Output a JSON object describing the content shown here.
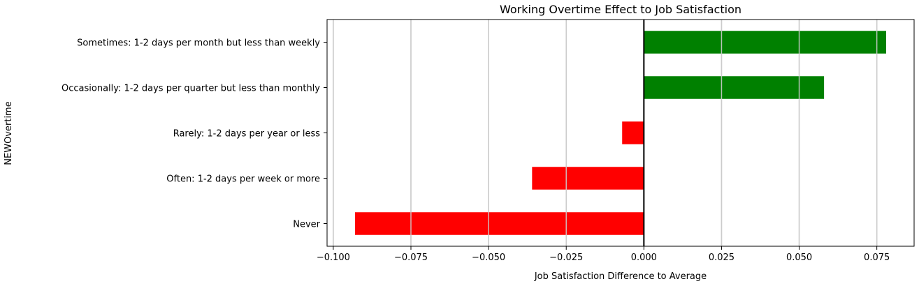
{
  "chart_data": {
    "type": "bar",
    "orientation": "horizontal",
    "title": "Working Overtime Effect to Job Satisfaction",
    "xlabel": "Job Satisfaction Difference to Average",
    "ylabel": "NEWOvertime",
    "categories": [
      "Sometimes: 1-2 days per month but less than weekly",
      "Occasionally: 1-2 days per quarter but less than monthly",
      "Rarely: 1-2 days per year or less",
      "Often: 1-2 days per week or more",
      "Never"
    ],
    "values": [
      0.078,
      0.058,
      -0.007,
      -0.036,
      -0.093
    ],
    "xlim": [
      -0.102,
      0.087
    ],
    "xticks": [
      -0.1,
      -0.075,
      -0.05,
      -0.025,
      0.0,
      0.025,
      0.05,
      0.075
    ],
    "xtick_labels": [
      "−0.100",
      "−0.075",
      "−0.050",
      "−0.025",
      "0.000",
      "0.025",
      "0.050",
      "0.075"
    ],
    "grid": "vertical",
    "colors": {
      "positive": "#008000",
      "negative": "#ff0000",
      "zero_line": "#000000",
      "grid": "#cccccc"
    }
  }
}
